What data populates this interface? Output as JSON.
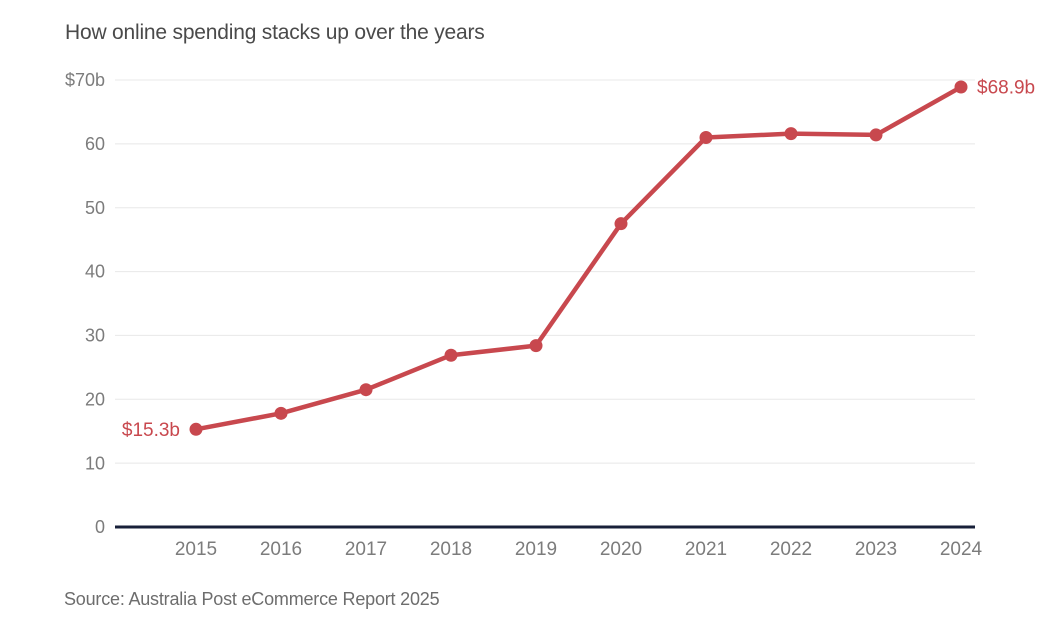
{
  "header": {
    "title": "How online spending stacks up over the years"
  },
  "footer": {
    "source": "Source: Australia Post eCommerce Report 2025"
  },
  "chart_data": {
    "type": "line",
    "title": "How online spending stacks up over the years",
    "xlabel": "",
    "ylabel": "",
    "categories": [
      "2015",
      "2016",
      "2017",
      "2018",
      "2019",
      "2020",
      "2021",
      "2022",
      "2023",
      "2024"
    ],
    "values": [
      15.3,
      17.8,
      21.5,
      26.9,
      28.4,
      47.5,
      61.0,
      61.6,
      61.4,
      68.9
    ],
    "units": "billions AUD",
    "ylim": [
      0,
      70
    ],
    "yticks": [
      {
        "value": 70,
        "label": "$70b"
      },
      {
        "value": 60,
        "label": "60"
      },
      {
        "value": 50,
        "label": "50"
      },
      {
        "value": 40,
        "label": "40"
      },
      {
        "value": 30,
        "label": "30"
      },
      {
        "value": 20,
        "label": "20"
      },
      {
        "value": 10,
        "label": "10"
      },
      {
        "value": 0,
        "label": "0"
      }
    ],
    "grid": true,
    "legend": "none",
    "annotations": [
      {
        "text": "$15.3b",
        "index": 0,
        "side": "left"
      },
      {
        "text": "$68.9b",
        "index": 9,
        "side": "right"
      }
    ],
    "colors": {
      "line": "#c8484e",
      "axis": "#182039",
      "gridline": "#e8e8e8",
      "tick_text": "#7c7c7c",
      "title_text": "#4a4a4a",
      "source_text": "#6d6d6d",
      "annotation_text": "#c8484e"
    }
  }
}
